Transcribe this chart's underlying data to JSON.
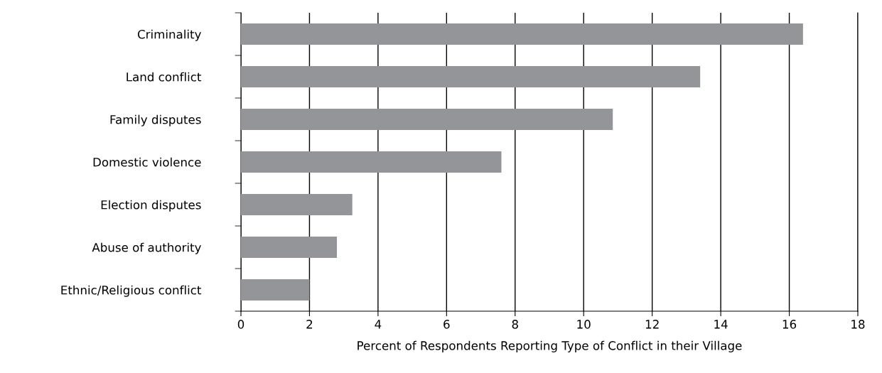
{
  "chart_data": {
    "type": "bar",
    "orientation": "horizontal",
    "categories": [
      "Criminality",
      "Land conflict",
      "Family disputes",
      "Domestic violence",
      "Election disputes",
      "Abuse of authority",
      "Ethnic/Religious conflict"
    ],
    "values": [
      16.4,
      13.4,
      10.85,
      7.6,
      3.25,
      2.8,
      2.0
    ],
    "color": "#939598",
    "xlabel": "Percent of Respondents Reporting Type of Conflict in their Village",
    "xlim": [
      0,
      18
    ],
    "xticks": [
      0,
      2,
      4,
      6,
      8,
      10,
      12,
      14,
      16,
      18
    ],
    "grid": "x",
    "legend": false
  }
}
